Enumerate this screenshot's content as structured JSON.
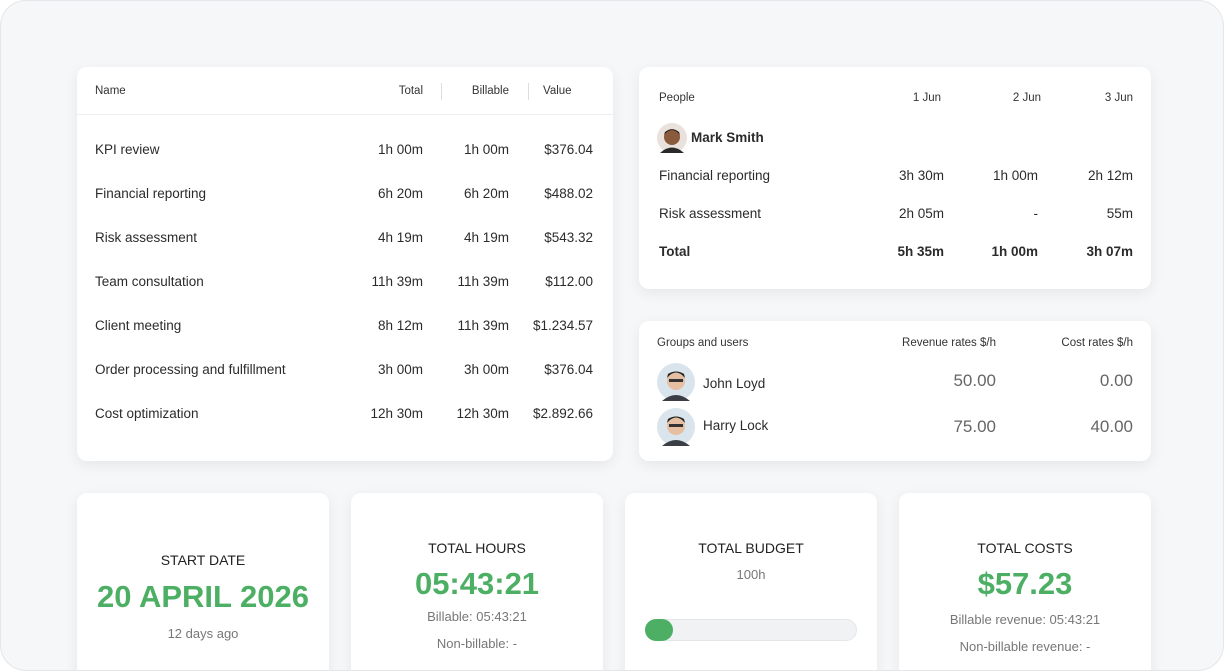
{
  "table": {
    "columns": [
      "Name",
      "Total",
      "Billable",
      "Value"
    ],
    "rows": [
      [
        "KPI review",
        "1h 00m",
        "1h 00m",
        "$376.04"
      ],
      [
        "Financial reporting",
        "6h 20m",
        "6h 20m",
        "$488.02"
      ],
      [
        "Risk assessment",
        "4h 19m",
        "4h 19m",
        "$543.32"
      ],
      [
        "Team consultation",
        "11h 39m",
        "11h 39m",
        "$112.00"
      ],
      [
        "Client meeting",
        "8h 12m",
        "11h 39m",
        "$1.234.57"
      ],
      [
        "Order processing and fulfillment",
        "3h 00m",
        "3h 00m",
        "$376.04"
      ],
      [
        "Cost optimization",
        "12h 30m",
        "12h 30m",
        "$2.892.66"
      ]
    ]
  },
  "people": {
    "columns": [
      "People",
      "1 Jun",
      "2 Jun",
      "3 Jun"
    ],
    "person": "Mark Smith",
    "rows": [
      [
        "Financial reporting",
        "3h 30m",
        "1h 00m",
        "2h 12m"
      ],
      [
        "Risk assessment",
        "2h 05m",
        "-",
        "55m"
      ]
    ],
    "total": [
      "Total",
      "5h 35m",
      "1h 00m",
      "3h 07m"
    ]
  },
  "rates": {
    "columns": [
      "Groups and users",
      "Revenue rates $/h",
      "Cost rates $/h"
    ],
    "rows": [
      [
        "John Loyd",
        "50.00",
        "0.00"
      ],
      [
        "Harry Lock",
        "75.00",
        "40.00"
      ]
    ]
  },
  "stats": [
    {
      "title": "START DATE",
      "value": "20 APRIL 2026",
      "notes": [
        "12 days ago"
      ]
    },
    {
      "title": "TOTAL HOURS",
      "value": "05:43:21",
      "notes": [
        "Billable: 05:43:21",
        "Non-billable: -"
      ]
    },
    {
      "title": "TOTAL BUDGET",
      "notes": [
        "100h"
      ]
    },
    {
      "title": "TOTAL COSTS",
      "value": "$57.23",
      "notes": [
        "Billable revenue: 05:43:21",
        "Non-billable revenue: -"
      ]
    }
  ]
}
